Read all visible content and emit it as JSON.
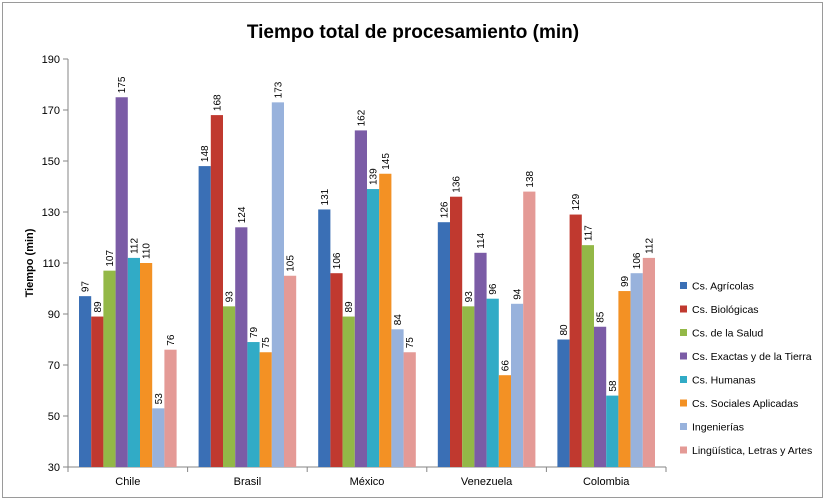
{
  "chart_data": {
    "type": "bar",
    "title": "Tiempo total de procesamiento (min)",
    "xlabel": "",
    "ylabel": "Tiempo (min)",
    "ylim": [
      30,
      190
    ],
    "yticks": [
      30,
      50,
      70,
      90,
      110,
      130,
      150,
      170,
      190
    ],
    "grid": false,
    "legend_position": "right",
    "categories": [
      "Chile",
      "Brasil",
      "México",
      "Venezuela",
      "Colombia"
    ],
    "series": [
      {
        "name": "Cs. Agrícolas",
        "color": "#3a6fb5",
        "values": [
          97,
          148,
          131,
          126,
          80
        ]
      },
      {
        "name": "Cs. Biológicas",
        "color": "#c0392f",
        "values": [
          89,
          168,
          106,
          136,
          129
        ]
      },
      {
        "name": "Cs. de la Salud",
        "color": "#93b847",
        "values": [
          107,
          93,
          89,
          93,
          117
        ]
      },
      {
        "name": "Cs. Exactas y de la Tierra",
        "color": "#7b5ca6",
        "values": [
          175,
          124,
          162,
          114,
          85
        ]
      },
      {
        "name": "Cs. Humanas",
        "color": "#31abc6",
        "values": [
          112,
          79,
          139,
          96,
          58
        ]
      },
      {
        "name": "Cs. Sociales Aplicadas",
        "color": "#f39124",
        "values": [
          110,
          75,
          145,
          66,
          99
        ]
      },
      {
        "name": "Ingenierías",
        "color": "#98b2dc",
        "values": [
          53,
          173,
          84,
          94,
          106
        ]
      },
      {
        "name": "Lingüística, Letras y Artes",
        "color": "#e49a96",
        "values": [
          76,
          105,
          75,
          138,
          112
        ]
      }
    ]
  }
}
